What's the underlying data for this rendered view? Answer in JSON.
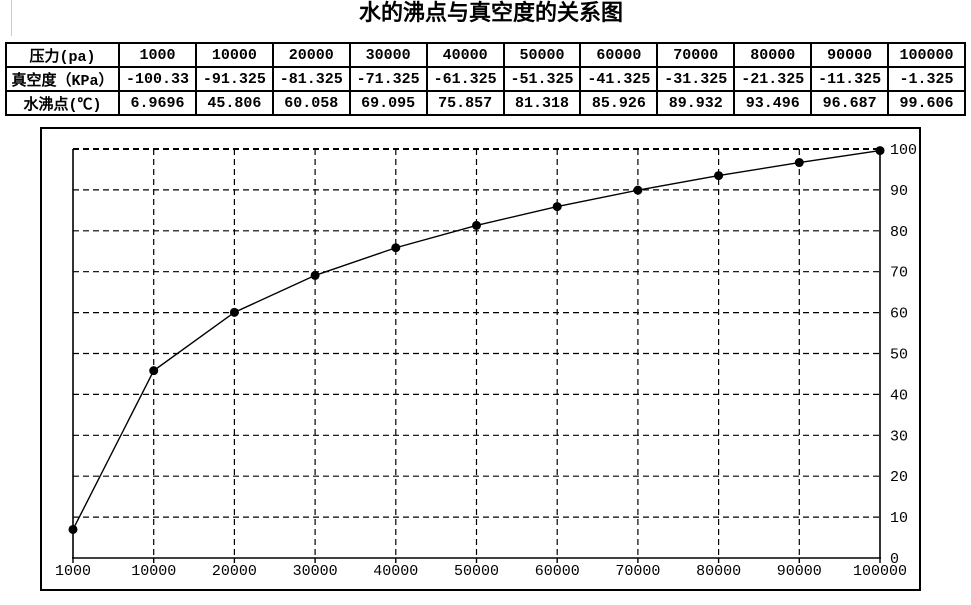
{
  "title": "水的沸点与真空度的关系图",
  "table": {
    "rows": [
      {
        "header": "压力(pa)",
        "values": [
          "1000",
          "10000",
          "20000",
          "30000",
          "40000",
          "50000",
          "60000",
          "70000",
          "80000",
          "90000",
          "100000"
        ]
      },
      {
        "header": "真空度（KPa）",
        "values": [
          "-100.33",
          "-91.325",
          "-81.325",
          "-71.325",
          "-61.325",
          "-51.325",
          "-41.325",
          "-31.325",
          "-21.325",
          "-11.325",
          "-1.325"
        ]
      },
      {
        "header": "水沸点(℃)",
        "values": [
          "6.9696",
          "45.806",
          "60.058",
          "69.095",
          "75.857",
          "81.318",
          "85.926",
          "89.932",
          "93.496",
          "96.687",
          "99.606"
        ]
      }
    ]
  },
  "chart_data": {
    "type": "line",
    "title": "水的沸点与真空度的关系图",
    "xlabel": "",
    "ylabel": "",
    "categories": [
      1000,
      10000,
      20000,
      30000,
      40000,
      50000,
      60000,
      70000,
      80000,
      90000,
      100000
    ],
    "series": [
      {
        "name": "水沸点(℃)",
        "values": [
          6.9696,
          45.806,
          60.058,
          69.095,
          75.857,
          81.318,
          85.926,
          89.932,
          93.496,
          96.687,
          99.606
        ]
      }
    ],
    "ylim": [
      0,
      100
    ],
    "y_ticks": [
      0,
      10,
      20,
      30,
      40,
      50,
      60,
      70,
      80,
      90,
      100
    ],
    "y_axis_position": "right",
    "x_axis_type": "category",
    "grid": "dashed",
    "legend": "none",
    "marker": "filled-circle",
    "colors": {
      "line": "#000000",
      "marker": "#000000",
      "grid": "#000000",
      "text": "#000000",
      "background": "#ffffff"
    }
  }
}
